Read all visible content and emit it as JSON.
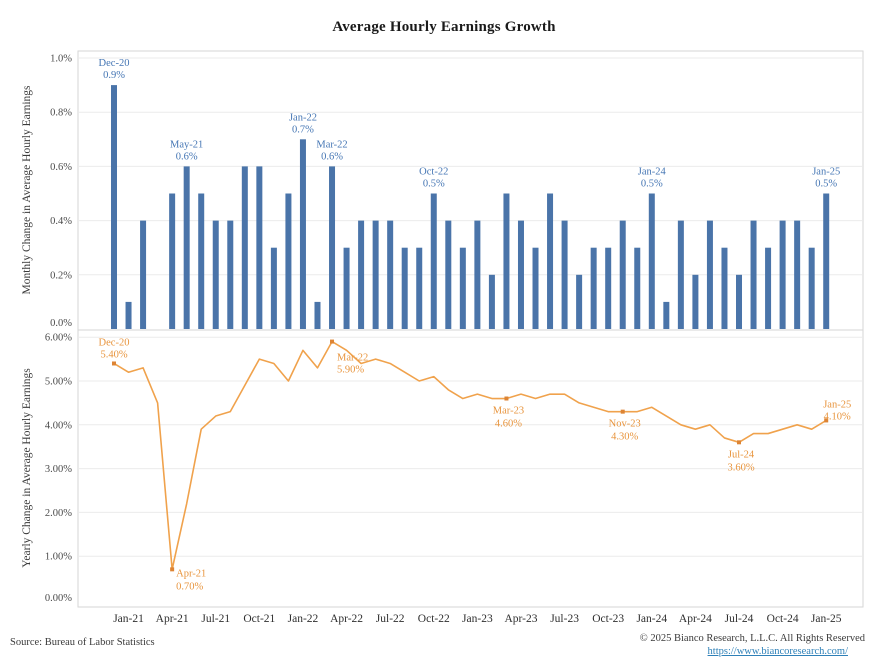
{
  "title": "Average Hourly Earnings Growth",
  "footer": {
    "source": "Source: Bureau of Labor Statistics",
    "copyright": "© 2025 Bianco Research, L.L.C. All Rights Reserved",
    "link": "https://www.biancoresearch.com/"
  },
  "colors": {
    "bar": "#4a74a9",
    "bar_label": "#4576b4",
    "line": "#f0a24c",
    "line_label": "#e8953e",
    "marker": "#dd8434",
    "grid": "#ebebeb",
    "border": "#d6d6d6",
    "axis_text": "#4a4a4a",
    "tick_text": "#2f2f2f",
    "title_text": "#1a1a1a"
  },
  "chart_data": {
    "type": "combo",
    "title": "Average Hourly Earnings Growth",
    "categories": [
      "Dec-20",
      "Jan-21",
      "Feb-21",
      "Mar-21",
      "Apr-21",
      "May-21",
      "Jun-21",
      "Jul-21",
      "Aug-21",
      "Sep-21",
      "Oct-21",
      "Nov-21",
      "Dec-21",
      "Jan-22",
      "Feb-22",
      "Mar-22",
      "Apr-22",
      "May-22",
      "Jun-22",
      "Jul-22",
      "Aug-22",
      "Sep-22",
      "Oct-22",
      "Nov-22",
      "Dec-22",
      "Jan-23",
      "Feb-23",
      "Mar-23",
      "Apr-23",
      "May-23",
      "Jun-23",
      "Jul-23",
      "Aug-23",
      "Sep-23",
      "Oct-23",
      "Nov-23",
      "Dec-23",
      "Jan-24",
      "Feb-24",
      "Mar-24",
      "Apr-24",
      "May-24",
      "Jun-24",
      "Jul-24",
      "Aug-24",
      "Sep-24",
      "Oct-24",
      "Nov-24",
      "Dec-24",
      "Jan-25"
    ],
    "x_tick_labels": [
      "Jan-21",
      "Apr-21",
      "Jul-21",
      "Oct-21",
      "Jan-22",
      "Apr-22",
      "Jul-22",
      "Oct-22",
      "Jan-23",
      "Apr-23",
      "Jul-23",
      "Oct-23",
      "Jan-24",
      "Apr-24",
      "Jul-24",
      "Oct-24",
      "Jan-25"
    ],
    "panels": [
      {
        "type": "bar",
        "ylabel": "Monthly Change in Average Hourly Earnings",
        "ylim": [
          0,
          1.0
        ],
        "yticks": [
          "0.0%",
          "0.2%",
          "0.4%",
          "0.6%",
          "0.8%",
          "1.0%"
        ],
        "grid": true,
        "values": [
          0.9,
          0.1,
          0.4,
          0.0,
          0.5,
          0.6,
          0.5,
          0.4,
          0.4,
          0.6,
          0.6,
          0.3,
          0.5,
          0.7,
          0.1,
          0.6,
          0.3,
          0.4,
          0.4,
          0.4,
          0.3,
          0.3,
          0.5,
          0.4,
          0.3,
          0.4,
          0.2,
          0.5,
          0.4,
          0.3,
          0.5,
          0.4,
          0.2,
          0.3,
          0.3,
          0.4,
          0.3,
          0.5,
          0.1,
          0.4,
          0.2,
          0.4,
          0.3,
          0.2,
          0.4,
          0.3,
          0.4,
          0.4,
          0.3,
          0.5
        ],
        "annotations": [
          {
            "index": 0,
            "label": "Dec-20",
            "value": "0.9%"
          },
          {
            "index": 5,
            "label": "May-21",
            "value": "0.6%"
          },
          {
            "index": 13,
            "label": "Jan-22",
            "value": "0.7%"
          },
          {
            "index": 15,
            "label": "Mar-22",
            "value": "0.6%"
          },
          {
            "index": 22,
            "label": "Oct-22",
            "value": "0.5%"
          },
          {
            "index": 37,
            "label": "Jan-24",
            "value": "0.5%"
          },
          {
            "index": 49,
            "label": "Jan-25",
            "value": "0.5%"
          }
        ]
      },
      {
        "type": "line",
        "ylabel": "Yearly Change in Average Hourly Earnings",
        "ylim": [
          0,
          6.0
        ],
        "yticks": [
          "0.00%",
          "1.00%",
          "2.00%",
          "3.00%",
          "4.00%",
          "5.00%",
          "6.00%"
        ],
        "grid": true,
        "values": [
          5.4,
          5.2,
          5.3,
          4.5,
          0.7,
          2.2,
          3.9,
          4.2,
          4.3,
          4.9,
          5.5,
          5.4,
          5.0,
          5.7,
          5.3,
          5.9,
          5.7,
          5.4,
          5.5,
          5.4,
          5.2,
          5.0,
          5.1,
          4.8,
          4.6,
          4.7,
          4.6,
          4.6,
          4.7,
          4.6,
          4.7,
          4.7,
          4.5,
          4.4,
          4.3,
          4.3,
          4.3,
          4.4,
          4.2,
          4.0,
          3.9,
          4.0,
          3.7,
          3.6,
          3.8,
          3.8,
          3.9,
          4.0,
          3.9,
          4.1
        ],
        "annotations": [
          {
            "index": 0,
            "label": "Dec-20",
            "value": "5.40%",
            "pos": "above"
          },
          {
            "index": 4,
            "label": "Apr-21",
            "value": "0.70%",
            "pos": "right"
          },
          {
            "index": 15,
            "label": "Mar-22",
            "value": "5.90%",
            "pos": "below-right"
          },
          {
            "index": 27,
            "label": "Mar-23",
            "value": "4.60%",
            "pos": "below"
          },
          {
            "index": 35,
            "label": "Nov-23",
            "value": "4.30%",
            "pos": "below"
          },
          {
            "index": 43,
            "label": "Jul-24",
            "value": "3.60%",
            "pos": "below"
          },
          {
            "index": 49,
            "label": "Jan-25",
            "value": "4.10%",
            "pos": "above-right"
          }
        ]
      }
    ]
  }
}
